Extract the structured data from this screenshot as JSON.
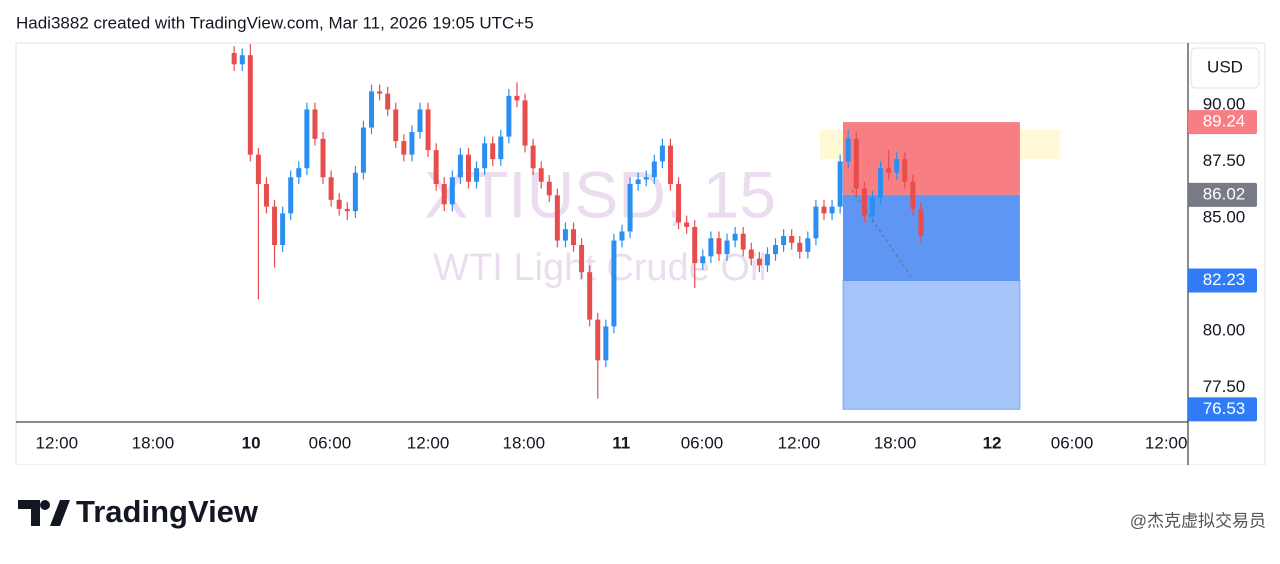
{
  "chart_data": {
    "type": "candlestick",
    "header": "Hadi3882 created with TradingView.com, Mar 11, 2026 19:05 UTC+5",
    "title": "XTIUSD, 15",
    "subtitle": "WTI Light Crude Oil",
    "currency": "USD",
    "brand": "TradingView",
    "watermark": "@杰克虚拟交易员",
    "up_color": "#2a8ff0",
    "down_color": "#e84d4d",
    "xlim": [
      0,
      290.1
    ],
    "ylim": [
      75.97,
      92.74
    ],
    "yticks": [
      {
        "value": 77.5,
        "label": "77.50"
      },
      {
        "value": 80,
        "label": "80.00"
      },
      {
        "value": 85,
        "label": "85.00"
      },
      {
        "value": 87.5,
        "label": "87.50"
      },
      {
        "value": 90,
        "label": "90.00"
      }
    ],
    "xticks": [
      {
        "value": 10.1,
        "label": "12:00"
      },
      {
        "value": 33.9,
        "label": "18:00"
      },
      {
        "value": 58.2,
        "label": "10"
      },
      {
        "value": 77.7,
        "label": "06:00"
      },
      {
        "value": 102,
        "label": "12:00"
      },
      {
        "value": 125.7,
        "label": "18:00"
      },
      {
        "value": 149.8,
        "label": "11"
      },
      {
        "value": 169.8,
        "label": "06:00"
      },
      {
        "value": 193.8,
        "label": "12:00"
      },
      {
        "value": 217.6,
        "label": "18:00"
      },
      {
        "value": 241.6,
        "label": "12"
      },
      {
        "value": 261.4,
        "label": "06:00"
      },
      {
        "value": 284.7,
        "label": "12:00"
      }
    ],
    "x": [
      54,
      56,
      58,
      60,
      62,
      64,
      66,
      68,
      70,
      72,
      74,
      76,
      78,
      80,
      82,
      84,
      86,
      88,
      90,
      92,
      94,
      96,
      98,
      100,
      102,
      104,
      106,
      108,
      110,
      112,
      114,
      116,
      118,
      120,
      122,
      124,
      126,
      128,
      130,
      132,
      134,
      136,
      138,
      140,
      142,
      144,
      146,
      148,
      150,
      152,
      154,
      156,
      158,
      160,
      162,
      164,
      166,
      168,
      170,
      172,
      174,
      176,
      178,
      180,
      182,
      184,
      186,
      188,
      190,
      192,
      194,
      196,
      198,
      200,
      202,
      204,
      206,
      208,
      210,
      212,
      214,
      216,
      218,
      220,
      222,
      224
    ],
    "open": [
      92.3,
      91.8,
      92.2,
      87.8,
      86.5,
      85.5,
      83.8,
      85.2,
      86.8,
      87.2,
      89.8,
      88.5,
      86.8,
      85.8,
      85.4,
      85.3,
      87.0,
      89.0,
      90.6,
      90.5,
      89.8,
      88.4,
      87.8,
      88.8,
      89.8,
      88.0,
      86.5,
      85.6,
      86.8,
      87.8,
      86.6,
      87.2,
      88.3,
      87.6,
      88.6,
      90.4,
      90.2,
      88.2,
      87.2,
      86.6,
      86.0,
      84.0,
      84.5,
      83.8,
      82.6,
      80.5,
      78.7,
      80.2,
      84.0,
      84.4,
      86.5,
      86.7,
      86.8,
      87.5,
      88.2,
      86.5,
      84.8,
      84.6,
      83.0,
      83.3,
      84.1,
      83.4,
      84.0,
      84.3,
      83.6,
      83.2,
      82.9,
      83.4,
      83.8,
      84.2,
      83.9,
      83.5,
      84.1,
      85.5,
      85.2,
      85.5,
      87.5,
      88.5,
      86.3,
      85.1,
      85.9,
      87.2,
      87.0,
      87.6,
      86.6,
      85.4
    ],
    "high": [
      92.6,
      92.5,
      92.7,
      88.1,
      86.8,
      85.8,
      85.5,
      87.1,
      87.5,
      90.1,
      90.1,
      88.8,
      87.1,
      86.1,
      85.7,
      87.3,
      89.3,
      90.9,
      90.9,
      90.8,
      90.1,
      88.7,
      89.1,
      90.1,
      90.1,
      88.3,
      86.8,
      87.1,
      88.1,
      88.1,
      87.5,
      88.6,
      88.6,
      88.9,
      90.7,
      91.0,
      90.5,
      88.5,
      87.5,
      86.9,
      86.3,
      84.8,
      84.8,
      84.1,
      82.9,
      80.8,
      80.5,
      84.3,
      84.7,
      86.8,
      87.0,
      87.1,
      87.8,
      88.5,
      88.5,
      86.8,
      85.1,
      84.9,
      83.6,
      84.4,
      84.4,
      84.3,
      84.6,
      84.6,
      83.9,
      83.5,
      83.7,
      84.1,
      84.5,
      84.5,
      84.2,
      84.4,
      85.8,
      85.8,
      85.8,
      87.8,
      88.9,
      88.8,
      86.6,
      86.2,
      87.5,
      88.0,
      87.9,
      87.9,
      86.9,
      85.7
    ],
    "low": [
      91.5,
      91.5,
      87.5,
      81.4,
      85.2,
      82.8,
      83.5,
      84.9,
      86.5,
      86.9,
      88.2,
      86.5,
      85.5,
      85.1,
      84.9,
      85.0,
      86.7,
      88.7,
      90.2,
      89.5,
      88.1,
      87.5,
      87.5,
      88.5,
      87.7,
      86.2,
      85.3,
      85.3,
      86.5,
      86.3,
      86.3,
      86.9,
      87.3,
      87.3,
      88.3,
      89.9,
      87.9,
      86.9,
      86.3,
      85.7,
      83.7,
      83.7,
      83.5,
      82.3,
      80.2,
      77.0,
      78.4,
      79.9,
      83.7,
      84.1,
      86.2,
      86.4,
      86.5,
      87.2,
      86.2,
      84.5,
      84.3,
      81.9,
      82.7,
      83.0,
      83.1,
      83.1,
      83.7,
      83.3,
      82.9,
      82.6,
      82.6,
      83.1,
      83.5,
      83.6,
      83.2,
      83.2,
      83.8,
      84.9,
      84.9,
      85.2,
      87.2,
      86.0,
      84.8,
      84.8,
      85.6,
      86.7,
      86.7,
      86.3,
      85.1,
      83.9
    ],
    "close": [
      91.8,
      92.2,
      87.8,
      86.5,
      85.5,
      83.8,
      85.2,
      86.8,
      87.2,
      89.8,
      88.5,
      86.8,
      85.8,
      85.4,
      85.3,
      87.0,
      89.0,
      90.6,
      90.5,
      89.8,
      88.4,
      87.8,
      88.8,
      89.8,
      88.0,
      86.5,
      85.6,
      86.8,
      87.8,
      86.6,
      87.2,
      88.3,
      87.6,
      88.6,
      90.4,
      90.2,
      88.2,
      87.2,
      86.6,
      86.0,
      84.0,
      84.5,
      83.8,
      82.6,
      80.5,
      78.7,
      80.2,
      84.0,
      84.4,
      86.5,
      86.7,
      86.8,
      87.5,
      88.2,
      86.5,
      84.8,
      84.6,
      83.0,
      83.3,
      84.1,
      83.4,
      84.0,
      84.3,
      83.6,
      83.2,
      82.9,
      83.4,
      83.8,
      84.2,
      83.9,
      83.5,
      84.1,
      85.5,
      85.2,
      85.5,
      87.5,
      88.5,
      86.3,
      85.1,
      85.9,
      87.2,
      87.0,
      87.6,
      86.6,
      85.4,
      84.2
    ],
    "position": {
      "start": 204.7,
      "end": 248.5,
      "stop": 89.24,
      "entry": 86.02,
      "target": 82.23,
      "target2": 76.53,
      "stop_color": "#f77e82",
      "entry_color": "#787b86",
      "target_color": "#2f7cf6",
      "profit_color": "#5f96f4",
      "profit2_color": "#a5c4f8"
    },
    "highlight": {
      "start": 199,
      "end": 258.5,
      "top": 88.9,
      "bottom": 87.6,
      "color": "#fff9d6"
    }
  }
}
